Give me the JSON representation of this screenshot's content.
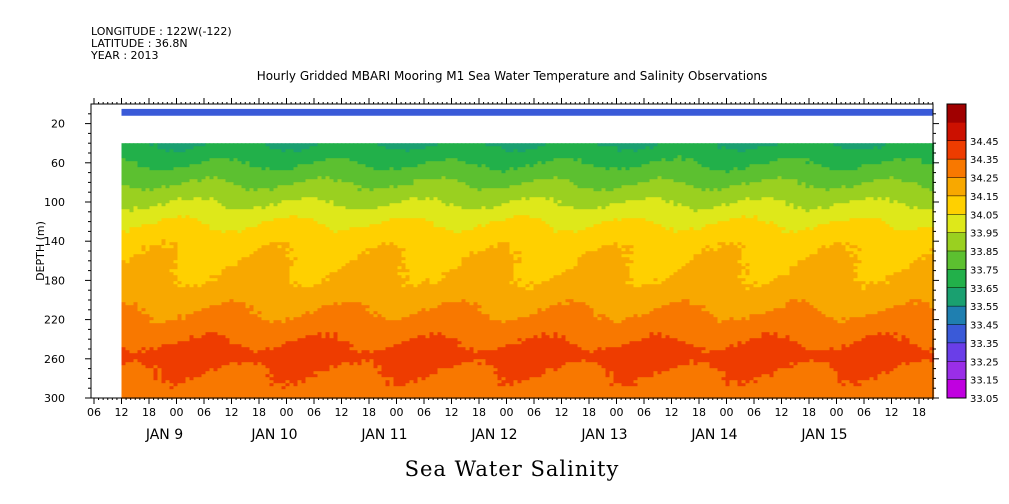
{
  "header": {
    "longitude": "LONGITUDE : 122W(-122)",
    "latitude": "LATITUDE : 36.8N",
    "year": "YEAR : 2013",
    "title": "Hourly Gridded MBARI Mooring M1 Sea Water Temperature and Salinity Observations"
  },
  "footer": {
    "variable_label": "Sea Water Salinity"
  },
  "chart_data": {
    "type": "heatmap",
    "title": "Hourly Gridded MBARI Mooring M1 Sea Water Temperature and Salinity Observations",
    "xlabel": "",
    "ylabel": "DEPTH (m)",
    "variable": "Sea Water Salinity",
    "y_axis_inverted": true,
    "ylim": [
      300,
      0
    ],
    "y_ticks": [
      20,
      60,
      100,
      140,
      180,
      220,
      260,
      300
    ],
    "x_start": "JAN 8 06:00",
    "x_end": "JAN 15 23:00",
    "x_tick_hour_labels": [
      "06",
      "12",
      "18",
      "00",
      "06",
      "12",
      "18",
      "00",
      "06",
      "12",
      "18",
      "00",
      "06",
      "12",
      "18",
      "00",
      "06",
      "12",
      "18",
      "00",
      "06",
      "12",
      "18",
      "00",
      "06",
      "12",
      "18",
      "00",
      "06",
      "12",
      "18"
    ],
    "day_labels": [
      "JAN  9",
      "JAN 10",
      "JAN 11",
      "JAN 12",
      "JAN 13",
      "JAN 14",
      "JAN 15"
    ],
    "data_start": "JAN 8 12:00",
    "surface_sensor_depth": 10,
    "surface_value": 33.3,
    "profile_top_depth": 40,
    "mean_profile": [
      {
        "depth": 40,
        "value": 33.55
      },
      {
        "depth": 60,
        "value": 33.65
      },
      {
        "depth": 80,
        "value": 33.75
      },
      {
        "depth": 100,
        "value": 33.85
      },
      {
        "depth": 120,
        "value": 33.95
      },
      {
        "depth": 140,
        "value": 34.02
      },
      {
        "depth": 160,
        "value": 34.05
      },
      {
        "depth": 180,
        "value": 34.07
      },
      {
        "depth": 200,
        "value": 34.12
      },
      {
        "depth": 220,
        "value": 34.18
      },
      {
        "depth": 240,
        "value": 34.24
      },
      {
        "depth": 255,
        "value": 34.3
      },
      {
        "depth": 270,
        "value": 34.25
      },
      {
        "depth": 285,
        "value": 34.22
      },
      {
        "depth": 300,
        "value": 34.18
      }
    ],
    "colorbar": {
      "levels": [
        33.05,
        33.15,
        33.25,
        33.35,
        33.45,
        33.55,
        33.65,
        33.75,
        33.85,
        33.95,
        34.05,
        34.15,
        34.25,
        34.35,
        34.45
      ],
      "colors": [
        "#c000e0",
        "#9a2ee8",
        "#6a3ee8",
        "#3a5ad8",
        "#1f7fb0",
        "#1aa070",
        "#22b04a",
        "#5cc030",
        "#9ad020",
        "#dee81a",
        "#ffd000",
        "#f8a800",
        "#f87800",
        "#ee3c00",
        "#cc1000",
        "#a00000"
      ]
    }
  }
}
